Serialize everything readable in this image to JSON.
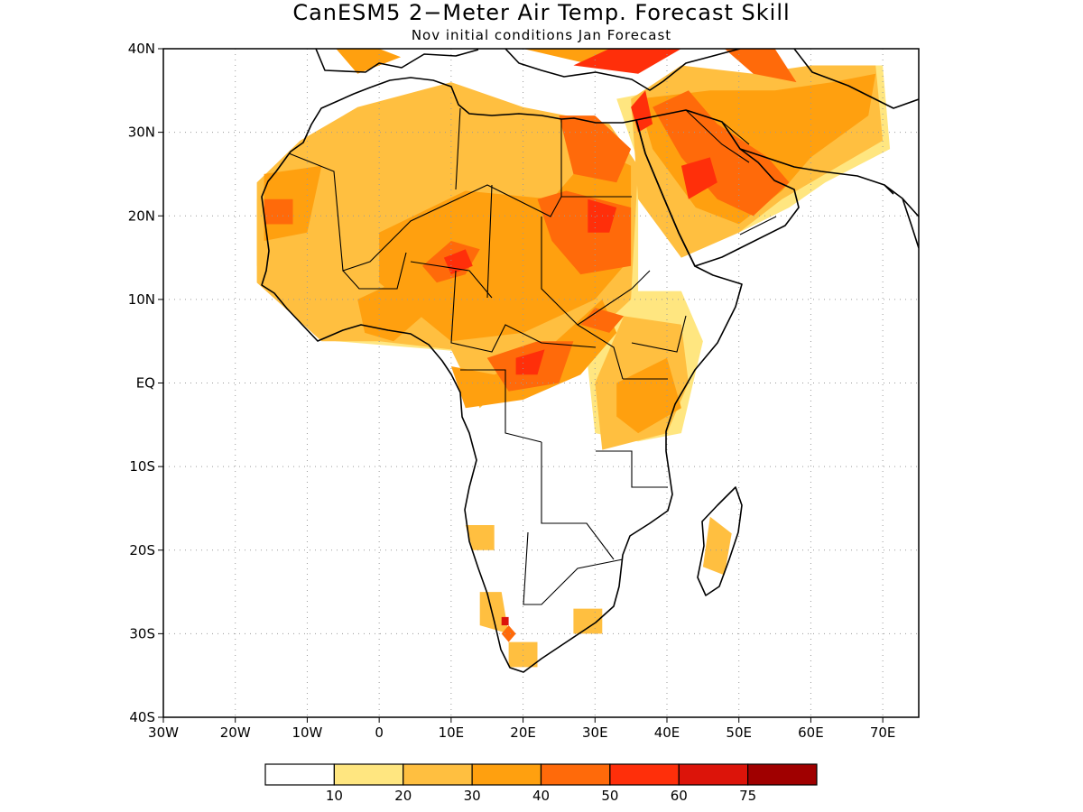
{
  "title": "CanESM5 2−Meter Air Temp. Forecast Skill",
  "subtitle": "Nov initial conditions   Jan Forecast",
  "map": {
    "lon_range": [
      -30,
      75
    ],
    "lat_range": [
      -40,
      40
    ],
    "grid": true,
    "lon_ticks": [
      {
        "value": -30,
        "label": "30W"
      },
      {
        "value": -20,
        "label": "20W"
      },
      {
        "value": -10,
        "label": "10W"
      },
      {
        "value": 0,
        "label": "0"
      },
      {
        "value": 10,
        "label": "10E"
      },
      {
        "value": 20,
        "label": "20E"
      },
      {
        "value": 30,
        "label": "30E"
      },
      {
        "value": 40,
        "label": "40E"
      },
      {
        "value": 50,
        "label": "50E"
      },
      {
        "value": 60,
        "label": "60E"
      },
      {
        "value": 70,
        "label": "70E"
      }
    ],
    "lat_ticks": [
      {
        "value": 40,
        "label": "40N"
      },
      {
        "value": 30,
        "label": "30N"
      },
      {
        "value": 20,
        "label": "20N"
      },
      {
        "value": 10,
        "label": "10N"
      },
      {
        "value": 0,
        "label": "EQ"
      },
      {
        "value": -10,
        "label": "10S"
      },
      {
        "value": -20,
        "label": "20S"
      },
      {
        "value": -30,
        "label": "30S"
      },
      {
        "value": -40,
        "label": "40S"
      }
    ]
  },
  "colorbar": {
    "colors": [
      "#ffffff",
      "#ffe680",
      "#ffbf40",
      "#ffa00f",
      "#ff6a0a",
      "#ff2f0a",
      "#dc140a",
      "#a00000"
    ],
    "labels": [
      "10",
      "20",
      "30",
      "40",
      "50",
      "60",
      "75"
    ]
  },
  "skill_regions": [
    {
      "level": 1,
      "polygon": [
        [
          -12,
          24
        ],
        [
          2,
          31
        ],
        [
          8,
          34
        ],
        [
          18,
          31
        ],
        [
          30,
          30
        ],
        [
          36,
          25
        ],
        [
          36,
          5
        ],
        [
          22,
          3
        ],
        [
          8,
          4
        ],
        [
          -6,
          5
        ],
        [
          -17,
          14
        ],
        [
          -17,
          22
        ]
      ]
    },
    {
      "level": 1,
      "polygon": [
        [
          33,
          34
        ],
        [
          45,
          36
        ],
        [
          55,
          37
        ],
        [
          62,
          38
        ],
        [
          70,
          38
        ],
        [
          71,
          28
        ],
        [
          62,
          24
        ],
        [
          57,
          21
        ],
        [
          50,
          18
        ],
        [
          42,
          15
        ],
        [
          37,
          24
        ]
      ]
    },
    {
      "level": 1,
      "polygon": [
        [
          34,
          11
        ],
        [
          42,
          11
        ],
        [
          45,
          5
        ],
        [
          42,
          -6
        ],
        [
          36,
          -7
        ],
        [
          30,
          -6
        ],
        [
          29,
          2
        ],
        [
          31,
          8
        ]
      ]
    },
    {
      "level": 2,
      "polygon": [
        [
          -17,
          24
        ],
        [
          -11,
          29
        ],
        [
          -3,
          33
        ],
        [
          10,
          36
        ],
        [
          20,
          33
        ],
        [
          32,
          31
        ],
        [
          36,
          26
        ],
        [
          35,
          10
        ],
        [
          30,
          6
        ],
        [
          20,
          2
        ],
        [
          14,
          -3
        ],
        [
          10,
          4
        ],
        [
          0,
          5
        ],
        [
          -8,
          5
        ],
        [
          -17,
          12
        ]
      ]
    },
    {
      "level": 2,
      "polygon": [
        [
          35,
          34
        ],
        [
          42,
          38
        ],
        [
          52,
          37
        ],
        [
          60,
          38
        ],
        [
          69,
          38
        ],
        [
          70,
          29
        ],
        [
          60,
          24
        ],
        [
          56,
          22
        ],
        [
          50,
          18
        ],
        [
          42,
          15
        ],
        [
          36,
          22
        ]
      ]
    },
    {
      "level": 2,
      "polygon": [
        [
          34,
          8
        ],
        [
          42,
          7
        ],
        [
          43,
          0
        ],
        [
          40,
          -6
        ],
        [
          31,
          -8
        ],
        [
          30,
          0
        ]
      ]
    },
    {
      "level": 2,
      "polygon": [
        [
          46,
          -16
        ],
        [
          49,
          -18
        ],
        [
          48,
          -23
        ],
        [
          45,
          -22
        ]
      ]
    },
    {
      "level": 2,
      "polygon": [
        [
          14,
          -25
        ],
        [
          17,
          -25
        ],
        [
          18,
          -30
        ],
        [
          14,
          -29
        ]
      ]
    },
    {
      "level": 2,
      "polygon": [
        [
          18,
          -31
        ],
        [
          22,
          -31
        ],
        [
          22,
          -34
        ],
        [
          18,
          -34
        ]
      ]
    },
    {
      "level": 2,
      "polygon": [
        [
          12,
          -17
        ],
        [
          16,
          -17
        ],
        [
          16,
          -20
        ],
        [
          13,
          -20
        ]
      ]
    },
    {
      "level": 2,
      "polygon": [
        [
          27,
          -27
        ],
        [
          31,
          -27
        ],
        [
          31,
          -30
        ],
        [
          27,
          -30
        ]
      ]
    },
    {
      "level": 3,
      "polygon": [
        [
          -16,
          25
        ],
        [
          -8,
          26
        ],
        [
          -10,
          18
        ],
        [
          -16,
          17
        ]
      ]
    },
    {
      "level": 3,
      "polygon": [
        [
          0,
          18
        ],
        [
          12,
          23
        ],
        [
          24,
          22
        ],
        [
          30,
          28
        ],
        [
          35,
          26
        ],
        [
          35,
          15
        ],
        [
          30,
          10
        ],
        [
          20,
          6
        ],
        [
          10,
          5
        ],
        [
          0,
          12
        ]
      ]
    },
    {
      "level": 3,
      "polygon": [
        [
          10,
          2
        ],
        [
          16,
          1
        ],
        [
          22,
          3
        ],
        [
          31,
          10
        ],
        [
          33,
          6
        ],
        [
          28,
          1
        ],
        [
          20,
          -2
        ],
        [
          12,
          -3
        ]
      ]
    },
    {
      "level": 3,
      "polygon": [
        [
          36,
          34
        ],
        [
          46,
          35
        ],
        [
          55,
          35
        ],
        [
          63,
          36
        ],
        [
          69,
          37
        ],
        [
          68,
          32
        ],
        [
          60,
          27
        ],
        [
          56,
          23
        ],
        [
          50,
          19
        ],
        [
          44,
          21
        ],
        [
          38,
          28
        ]
      ]
    },
    {
      "level": 3,
      "polygon": [
        [
          33,
          0
        ],
        [
          40,
          3
        ],
        [
          42,
          -3
        ],
        [
          36,
          -6
        ],
        [
          33,
          -4
        ]
      ]
    },
    {
      "level": 3,
      "polygon": [
        [
          -3,
          10
        ],
        [
          2,
          12
        ],
        [
          6,
          8
        ],
        [
          2,
          5
        ],
        [
          -2,
          6
        ]
      ]
    },
    {
      "level": 3,
      "polygon": [
        [
          -3,
          37
        ],
        [
          3,
          39
        ],
        [
          0,
          40
        ],
        [
          -6,
          40
        ]
      ]
    },
    {
      "level": 3,
      "polygon": [
        [
          20,
          40
        ],
        [
          30,
          38
        ],
        [
          40,
          40
        ],
        [
          24,
          40
        ]
      ]
    },
    {
      "level": 4,
      "polygon": [
        [
          6,
          14
        ],
        [
          10,
          17
        ],
        [
          14,
          16
        ],
        [
          12,
          13
        ],
        [
          8,
          12
        ]
      ]
    },
    {
      "level": 4,
      "polygon": [
        [
          22,
          22
        ],
        [
          26,
          23
        ],
        [
          35,
          21
        ],
        [
          35,
          14
        ],
        [
          28,
          13
        ],
        [
          24,
          17
        ]
      ]
    },
    {
      "level": 4,
      "polygon": [
        [
          25,
          32
        ],
        [
          30,
          32
        ],
        [
          35,
          28
        ],
        [
          33,
          24
        ],
        [
          27,
          25
        ]
      ]
    },
    {
      "level": 4,
      "polygon": [
        [
          30,
          9
        ],
        [
          34,
          8
        ],
        [
          32,
          6
        ],
        [
          28,
          7
        ]
      ]
    },
    {
      "level": 4,
      "polygon": [
        [
          15,
          3
        ],
        [
          22,
          5
        ],
        [
          27,
          5
        ],
        [
          25,
          0
        ],
        [
          18,
          -1
        ]
      ]
    },
    {
      "level": 4,
      "polygon": [
        [
          38,
          33
        ],
        [
          43,
          35
        ],
        [
          47,
          31
        ],
        [
          54,
          27
        ],
        [
          57,
          24
        ],
        [
          52,
          20
        ],
        [
          47,
          22
        ],
        [
          42,
          27
        ]
      ]
    },
    {
      "level": 4,
      "polygon": [
        [
          48,
          40
        ],
        [
          55,
          40
        ],
        [
          58,
          36
        ],
        [
          52,
          37
        ]
      ]
    },
    {
      "level": 4,
      "polygon": [
        [
          -16,
          22
        ],
        [
          -12,
          22
        ],
        [
          -12,
          19
        ],
        [
          -16,
          19
        ]
      ]
    },
    {
      "level": 4,
      "polygon": [
        [
          18,
          -29
        ],
        [
          19,
          -30
        ],
        [
          18,
          -31
        ],
        [
          17,
          -30
        ]
      ]
    },
    {
      "level": 5,
      "polygon": [
        [
          9,
          15
        ],
        [
          12,
          16
        ],
        [
          13,
          14
        ],
        [
          10,
          13
        ]
      ]
    },
    {
      "level": 5,
      "polygon": [
        [
          29,
          22
        ],
        [
          33,
          21
        ],
        [
          32,
          18
        ],
        [
          29,
          18
        ]
      ]
    },
    {
      "level": 5,
      "polygon": [
        [
          42,
          26
        ],
        [
          46,
          27
        ],
        [
          47,
          24
        ],
        [
          43,
          22
        ]
      ]
    },
    {
      "level": 5,
      "polygon": [
        [
          27,
          38
        ],
        [
          32,
          40
        ],
        [
          42,
          40
        ],
        [
          36,
          37
        ]
      ]
    },
    {
      "level": 5,
      "polygon": [
        [
          19,
          3
        ],
        [
          23,
          4
        ],
        [
          22,
          1
        ],
        [
          19,
          1
        ]
      ]
    },
    {
      "level": 5,
      "polygon": [
        [
          35,
          33
        ],
        [
          37,
          35
        ],
        [
          38,
          31
        ],
        [
          36,
          30
        ]
      ]
    },
    {
      "level": 6,
      "polygon": [
        [
          17,
          -28
        ],
        [
          18,
          -28
        ],
        [
          18,
          -29
        ],
        [
          17,
          -29
        ]
      ]
    }
  ]
}
